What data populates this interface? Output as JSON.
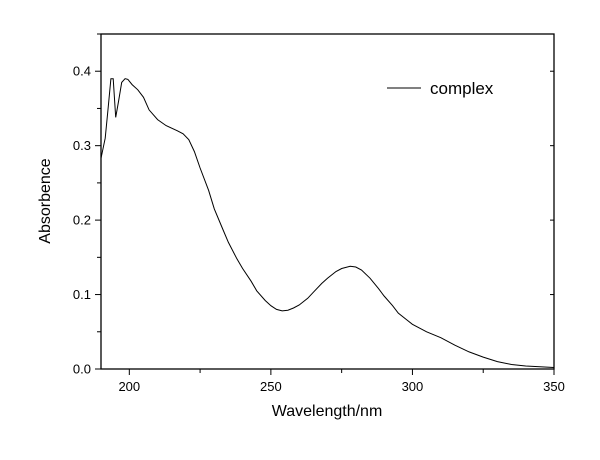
{
  "chart_data": {
    "type": "line",
    "title": "",
    "xlabel": "Wavelength/nm",
    "ylabel": "Absorbence",
    "xlim": [
      190,
      350
    ],
    "ylim": [
      0,
      0.45
    ],
    "xticks": [
      200,
      250,
      300,
      350
    ],
    "xtick_labels": [
      "200",
      "250",
      "300",
      "350"
    ],
    "yticks": [
      0.0,
      0.1,
      0.2,
      0.3,
      0.4
    ],
    "ytick_labels": [
      "0.0",
      "0.1",
      "0.2",
      "0.3",
      "0.4"
    ],
    "grid": false,
    "legend_position": "top-right",
    "series": [
      {
        "name": "complex",
        "color": "#000000",
        "x": [
          190,
          191.5,
          192.5,
          193.5,
          194.3,
          195.2,
          196.2,
          197.3,
          198.5,
          199.5,
          201,
          203,
          205,
          207,
          210,
          213,
          217,
          219,
          221,
          223,
          225,
          228,
          230,
          233,
          235,
          238,
          240,
          243,
          245,
          248,
          250,
          252,
          254,
          256,
          258,
          260,
          263,
          265,
          268,
          270,
          273,
          275,
          278,
          280,
          282,
          285,
          288,
          290,
          293,
          295,
          298,
          300,
          305,
          310,
          315,
          320,
          325,
          330,
          335,
          340,
          345,
          350
        ],
        "y": [
          0.283,
          0.31,
          0.35,
          0.39,
          0.39,
          0.338,
          0.36,
          0.385,
          0.39,
          0.389,
          0.382,
          0.375,
          0.365,
          0.348,
          0.335,
          0.327,
          0.32,
          0.316,
          0.308,
          0.292,
          0.27,
          0.24,
          0.215,
          0.188,
          0.17,
          0.148,
          0.135,
          0.118,
          0.105,
          0.092,
          0.085,
          0.08,
          0.078,
          0.079,
          0.082,
          0.086,
          0.095,
          0.103,
          0.115,
          0.122,
          0.131,
          0.135,
          0.138,
          0.137,
          0.133,
          0.122,
          0.108,
          0.098,
          0.085,
          0.075,
          0.066,
          0.06,
          0.05,
          0.042,
          0.032,
          0.023,
          0.016,
          0.01,
          0.006,
          0.004,
          0.003,
          0.002
        ]
      }
    ]
  }
}
